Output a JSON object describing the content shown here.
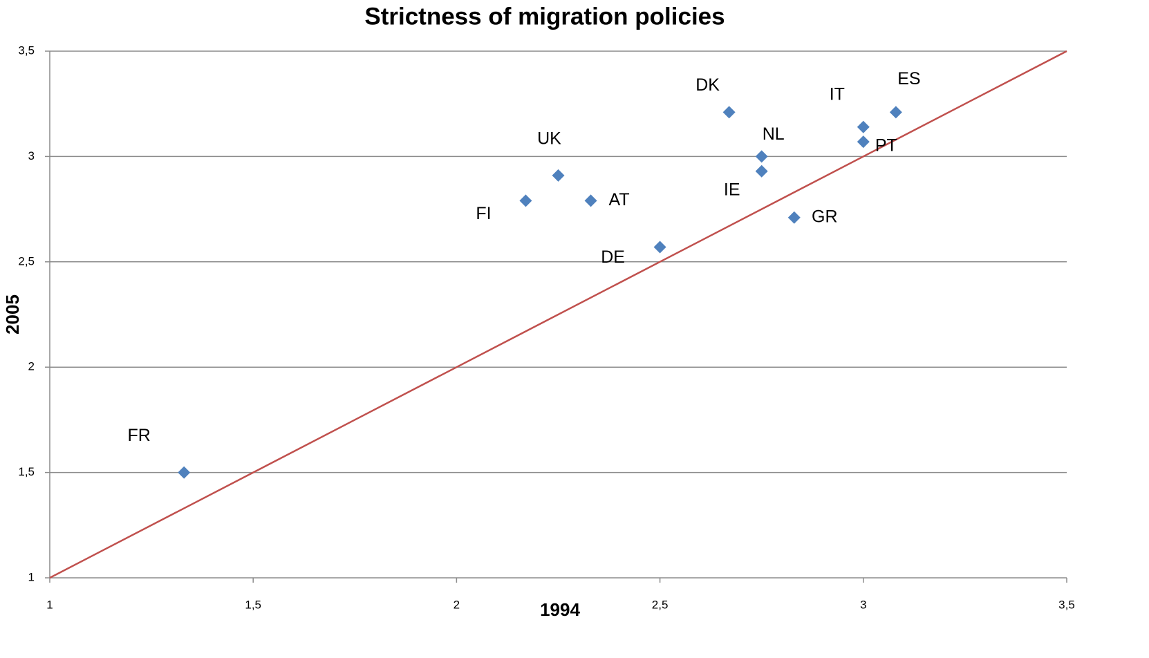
{
  "chart_data": {
    "type": "scatter",
    "title": "Strictness of migration policies",
    "x_label": "1994",
    "y_label": "2005",
    "series": [
      {
        "name": null,
        "color": "#4f81bd",
        "labels": [
          "FR",
          "FI",
          "UK",
          "AT",
          "DE",
          "DK",
          "NL",
          "IE",
          "GR",
          "IT",
          "PT",
          "ES"
        ],
        "x": [
          1.33,
          2.17,
          2.25,
          2.33,
          2.5,
          2.67,
          2.75,
          2.75,
          2.83,
          3.0,
          3.0,
          3.08
        ],
        "values": [
          1.5,
          2.79,
          2.91,
          2.79,
          2.57,
          3.21,
          3.0,
          2.93,
          2.71,
          3.14,
          3.07,
          3.21
        ]
      }
    ],
    "reference_line": {
      "color": "#c0504d",
      "x": [
        1,
        3.5
      ],
      "y": [
        1,
        3.5
      ]
    },
    "xlim": [
      1,
      3.5
    ],
    "ylim": [
      1,
      3.5
    ],
    "xticks": [
      1,
      {
        "value": 1.5,
        "label": "1,5"
      },
      2,
      {
        "value": 2.5,
        "label": "2,5"
      },
      3,
      {
        "value": 3.5,
        "label": "3,5"
      }
    ],
    "yticks": [
      1,
      {
        "value": 1.5,
        "label": "1,5"
      },
      2,
      {
        "value": 2.5,
        "label": "2,5"
      },
      3,
      {
        "value": 3.5,
        "label": "3,5"
      }
    ],
    "grid": true
  }
}
